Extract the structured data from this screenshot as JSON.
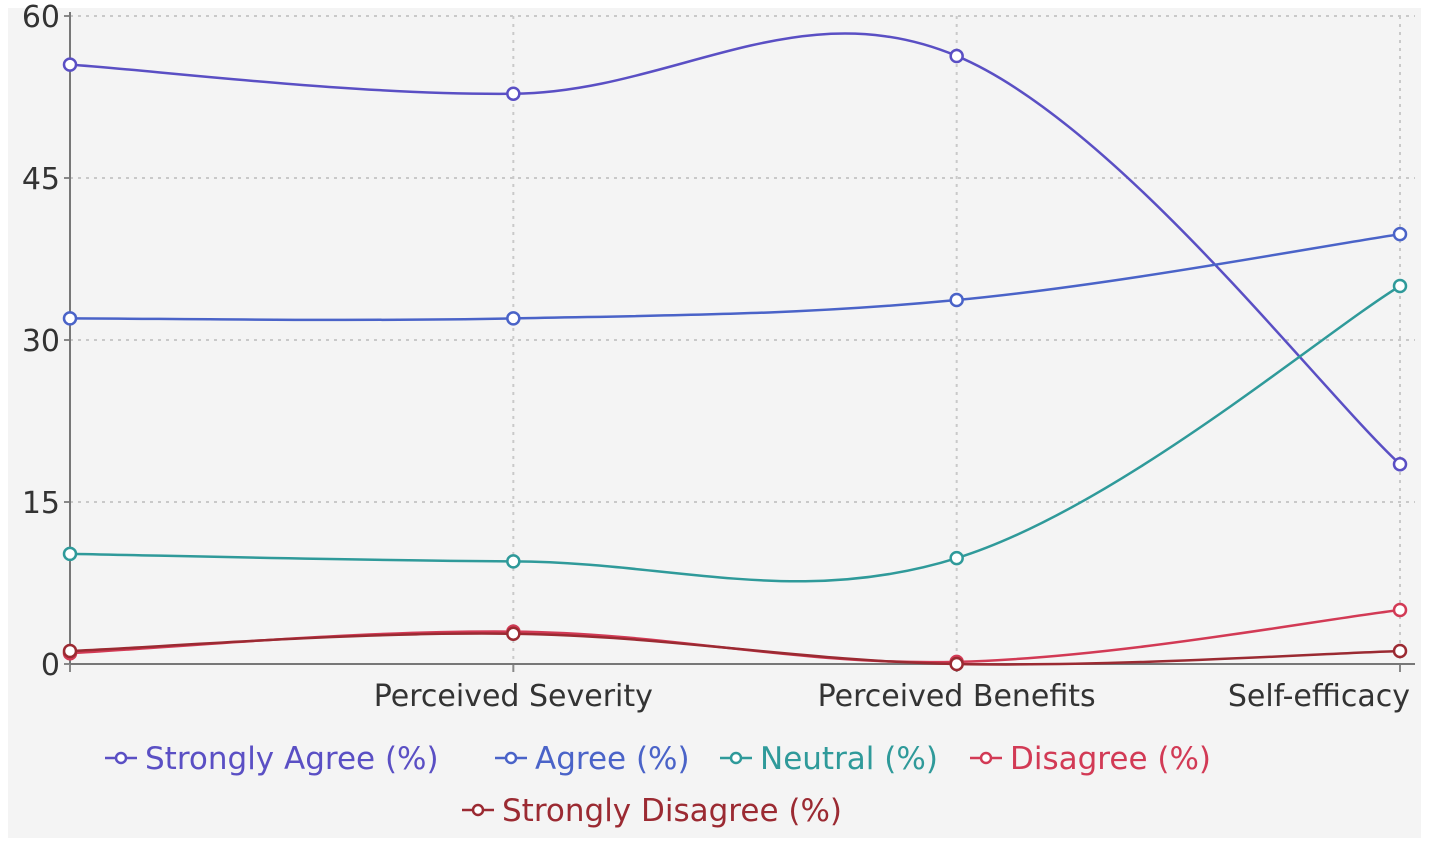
{
  "chart_data": {
    "type": "line",
    "title": "",
    "xlabel": "",
    "ylabel": "",
    "categories": [
      "",
      "Perceived Severity",
      "Perceived Benefits",
      "Self-efficacy"
    ],
    "ylim": [
      0,
      60
    ],
    "yticks": [
      "0",
      "15",
      "30",
      "45",
      "60"
    ],
    "grid": true,
    "legend_position": "bottom",
    "background": "#f4f4f4",
    "series": [
      {
        "name": "Strongly Agree (%)",
        "color": "#5a4fc4",
        "values": [
          55.5,
          52.8,
          56.3,
          18.5
        ]
      },
      {
        "name": "Agree (%)",
        "color": "#4a63c8",
        "values": [
          32.0,
          32.0,
          33.7,
          39.8
        ]
      },
      {
        "name": "Neutral (%)",
        "color": "#2f9a9a",
        "values": [
          10.2,
          9.5,
          9.8,
          35.0
        ]
      },
      {
        "name": "Disagree (%)",
        "color": "#d23a55",
        "values": [
          1.0,
          3.0,
          0.2,
          5.0
        ]
      },
      {
        "name": "Strongly Disagree (%)",
        "color": "#9b2a32",
        "values": [
          1.2,
          2.8,
          0.0,
          1.2
        ]
      }
    ]
  }
}
